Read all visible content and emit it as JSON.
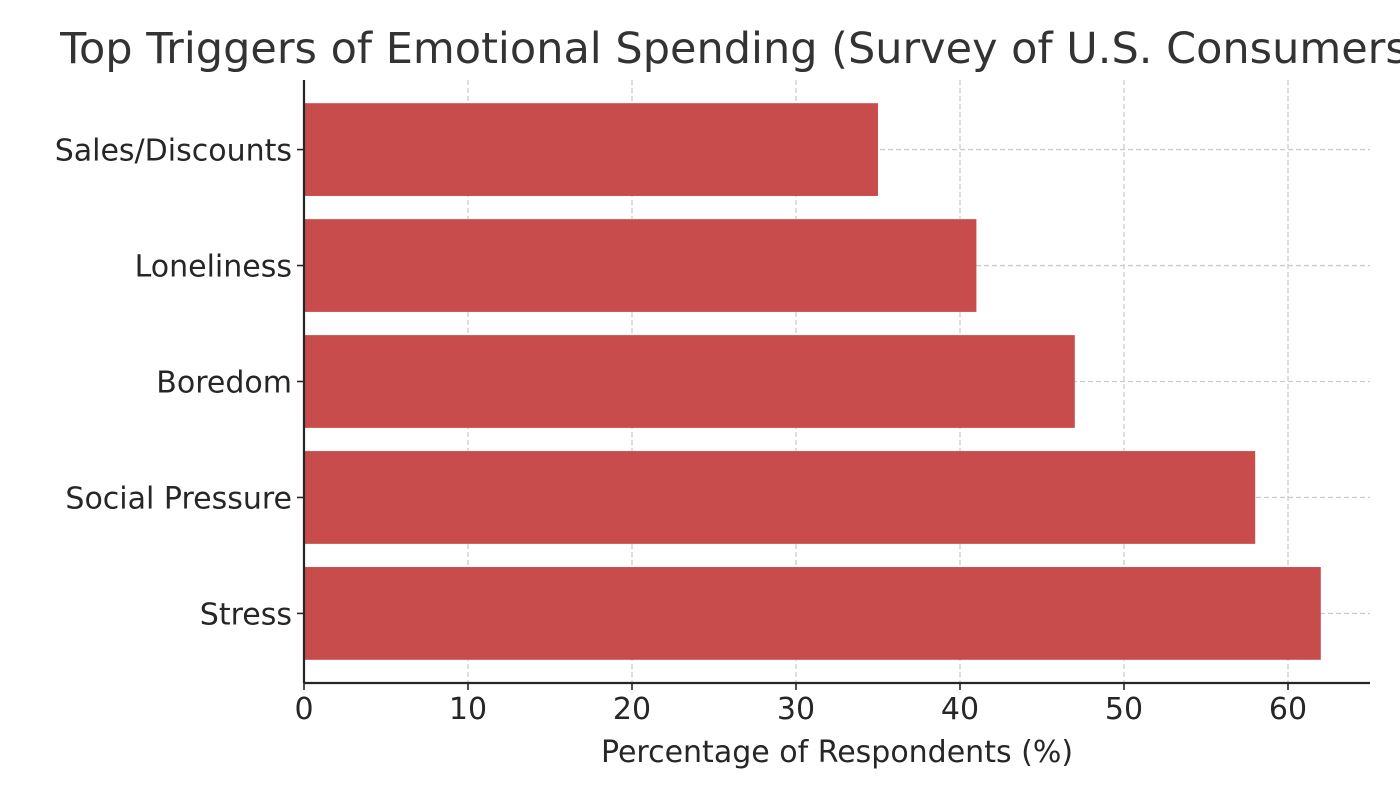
{
  "chart_data": {
    "type": "bar",
    "orientation": "horizontal",
    "title": "Top Triggers of Emotional Spending (Survey of U.S. Consumers)",
    "xlabel": "Percentage of Respondents (%)",
    "ylabel": "",
    "categories": [
      "Stress",
      "Social Pressure",
      "Boredom",
      "Loneliness",
      "Sales/Discounts"
    ],
    "values": [
      62,
      58,
      47,
      41,
      35
    ],
    "xlim": [
      0,
      65
    ],
    "xticks": [
      0,
      10,
      20,
      30,
      40,
      50,
      60
    ],
    "grid": true,
    "bar_color": "#c84c4c"
  }
}
